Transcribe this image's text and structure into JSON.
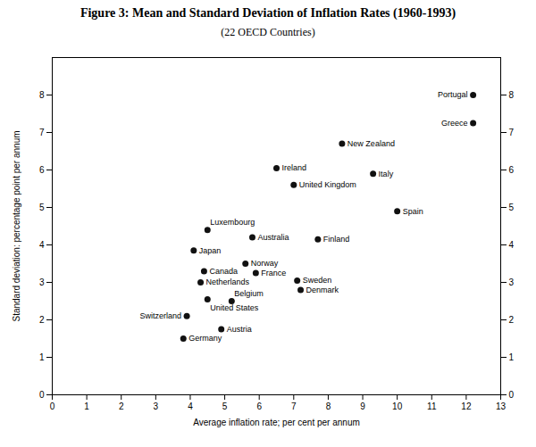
{
  "chart_data": {
    "type": "scatter",
    "title": "Figure 3: Mean and Standard Deviation of Inflation Rates (1960-1993)",
    "subtitle": "(22 OECD Countries)",
    "xlabel": "Average inflation rate; per cent per annum",
    "ylabel": "Standard deviation: percentage point per annum",
    "labels": [
      "Portugal",
      "Greece",
      "New Zealand",
      "Ireland",
      "Italy",
      "United Kingdom",
      "Spain",
      "Luxembourg",
      "Australia",
      "Finland",
      "Japan",
      "Norway",
      "Canada",
      "France",
      "Sweden",
      "Netherlands",
      "Denmark",
      "United States",
      "Belgium",
      "Switzerland",
      "Austria",
      "Germany"
    ],
    "x": [
      12.2,
      12.2,
      8.4,
      6.5,
      9.3,
      7.0,
      10.0,
      4.5,
      5.8,
      7.7,
      4.1,
      5.6,
      4.4,
      5.9,
      7.1,
      4.3,
      7.2,
      4.5,
      5.2,
      3.9,
      4.9,
      3.8
    ],
    "values": [
      8.0,
      7.25,
      6.7,
      6.05,
      5.9,
      5.6,
      4.9,
      4.4,
      4.2,
      4.15,
      3.85,
      3.5,
      3.3,
      3.25,
      3.05,
      3.0,
      2.8,
      2.55,
      2.5,
      2.1,
      1.75,
      1.5
    ],
    "color": "#111111",
    "xlim": [
      0,
      13
    ],
    "ylim": [
      0,
      9
    ],
    "xticks": [
      0,
      1,
      2,
      3,
      4,
      5,
      6,
      7,
      8,
      9,
      10,
      11,
      12,
      13
    ],
    "yticks": [
      0,
      1,
      2,
      3,
      4,
      5,
      6,
      7,
      8
    ],
    "grid": false
  }
}
